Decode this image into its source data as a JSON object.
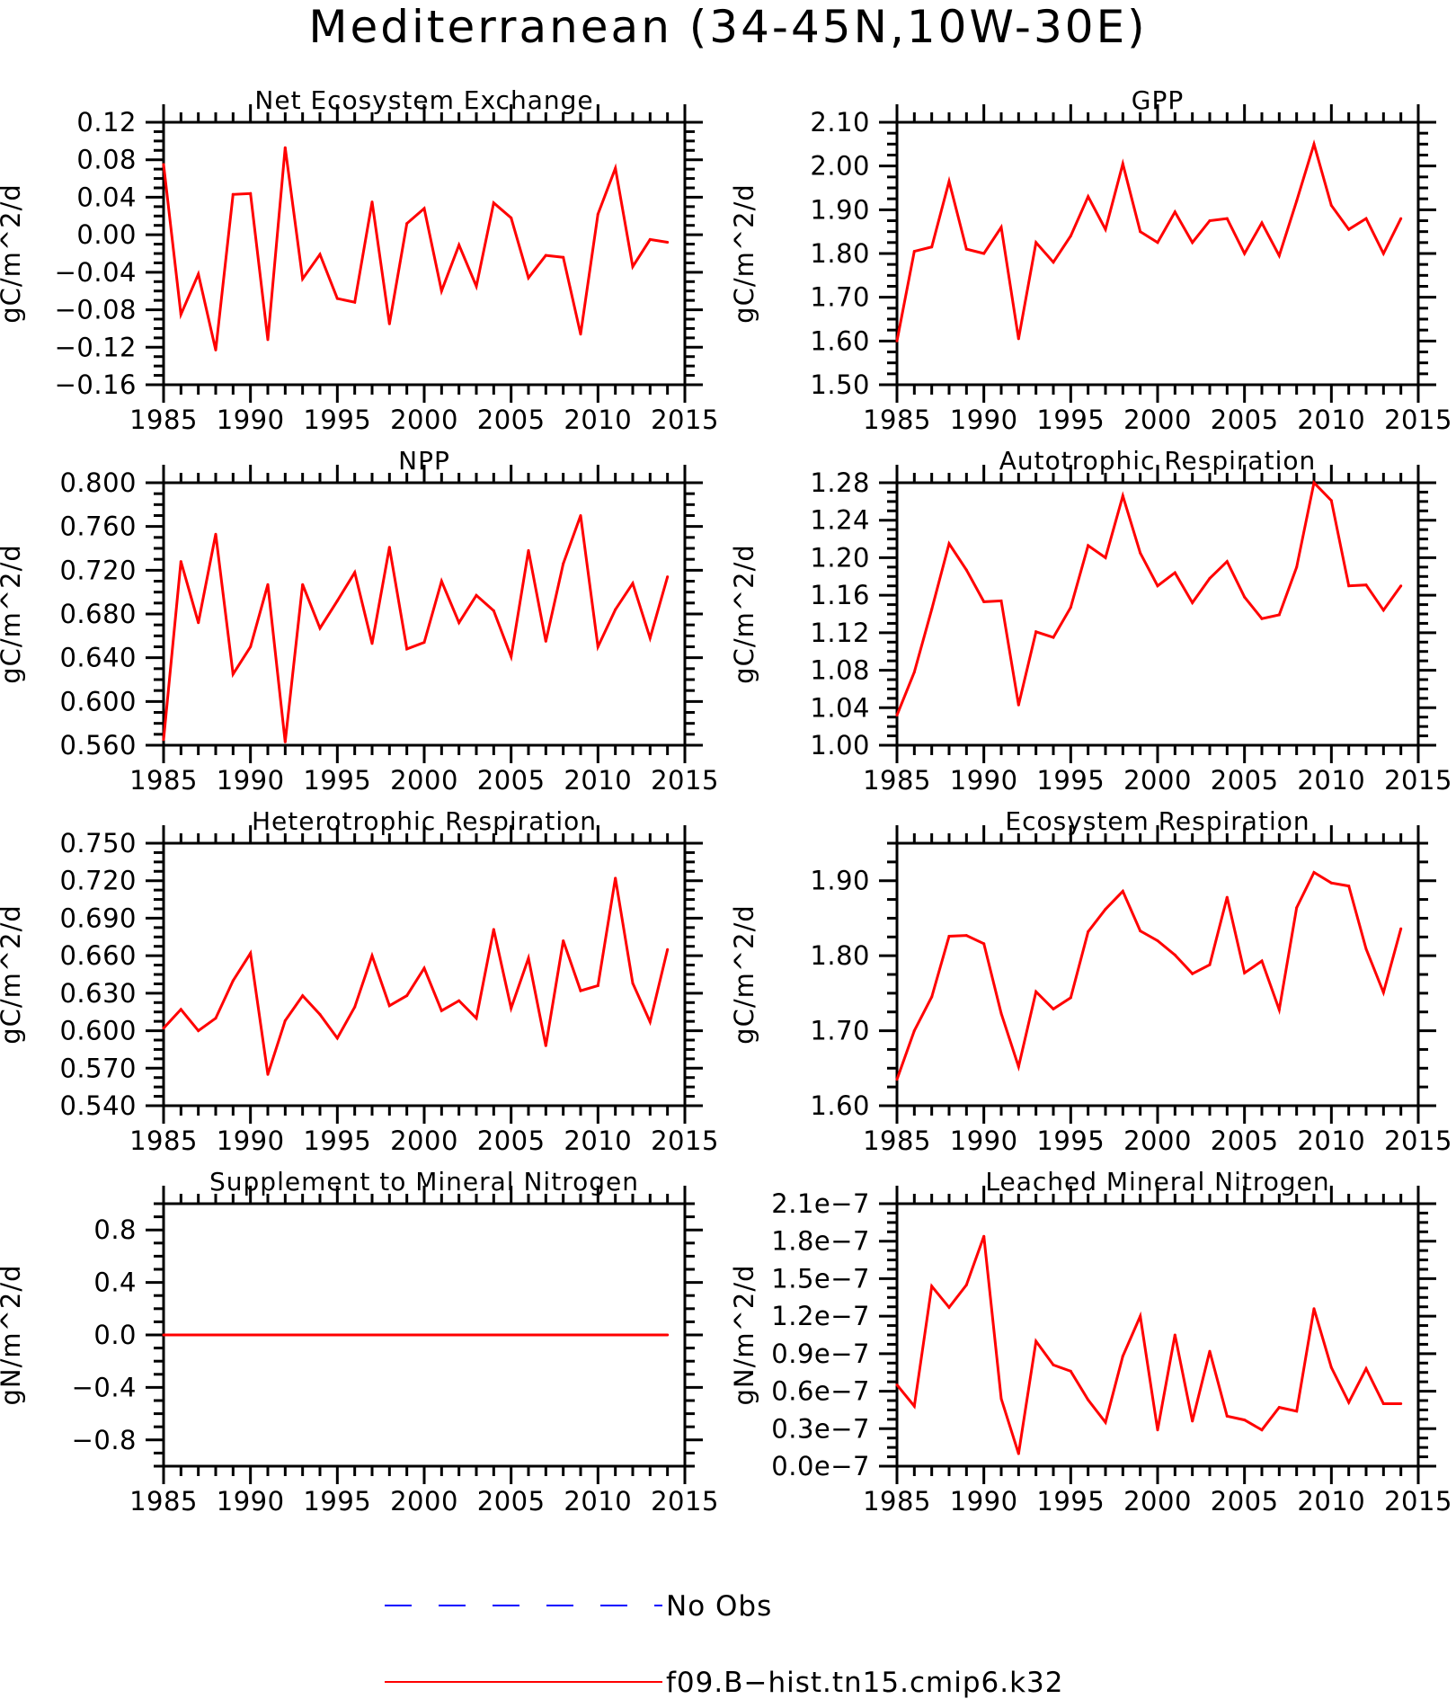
{
  "figure": {
    "title": "Mediterranean (34-45N,10W-30E)"
  },
  "colors": {
    "model": "#ff0000",
    "obs": "#0000ff",
    "axes": "#000000"
  },
  "legend": {
    "entries": [
      {
        "label": "No Obs",
        "color": "#0000ff",
        "style": "dashed"
      },
      {
        "label": "f09.B-hist.tn15.cmip6.k32",
        "color": "#ff0000",
        "style": "solid"
      }
    ]
  },
  "chart_data": [
    {
      "type": "line",
      "title": "Net Ecosystem Exchange",
      "ylabel": "gC/m^2/d",
      "xlabel": "",
      "xlim": [
        1985,
        2015
      ],
      "ylim": [
        -0.16,
        0.12
      ],
      "xticks": [
        1985,
        1990,
        1995,
        2000,
        2005,
        2010,
        2015
      ],
      "xtick_labels": [
        "1985",
        "1990",
        "1995",
        "2000",
        "2005",
        "2010",
        "2015"
      ],
      "yticks": [
        -0.16,
        -0.12,
        -0.08,
        -0.04,
        0.0,
        0.04,
        0.08,
        0.12
      ],
      "ytick_labels": [
        "-0.16",
        "-0.12",
        "-0.08",
        "-0.04",
        "0.00",
        "0.04",
        "0.08",
        "0.12"
      ],
      "grid": false,
      "series": [
        {
          "x": [
            1985,
            1986,
            1987,
            1988,
            1989,
            1990,
            1991,
            1992,
            1993,
            1994,
            1995,
            1996,
            1997,
            1998,
            1999,
            2000,
            2001,
            2002,
            2003,
            2004,
            2005,
            2006,
            2007,
            2008,
            2009,
            2010,
            2011,
            2012,
            2013,
            2014
          ],
          "values": [
            0.075,
            -0.085,
            -0.042,
            -0.123,
            0.043,
            0.044,
            -0.112,
            0.093,
            -0.047,
            -0.021,
            -0.068,
            -0.072,
            0.035,
            -0.095,
            0.012,
            0.028,
            -0.06,
            -0.011,
            -0.055,
            0.034,
            0.018,
            -0.046,
            -0.022,
            -0.024,
            -0.106,
            0.022,
            0.071,
            -0.034,
            -0.005,
            -0.008
          ]
        }
      ]
    },
    {
      "type": "line",
      "title": "GPP",
      "ylabel": "gC/m^2/d",
      "xlabel": "",
      "xlim": [
        1985,
        2015
      ],
      "ylim": [
        1.5,
        2.1
      ],
      "xticks": [
        1985,
        1990,
        1995,
        2000,
        2005,
        2010,
        2015
      ],
      "xtick_labels": [
        "1985",
        "1990",
        "1995",
        "2000",
        "2005",
        "2010",
        "2015"
      ],
      "yticks": [
        1.5,
        1.6,
        1.7,
        1.8,
        1.9,
        2.0,
        2.1
      ],
      "ytick_labels": [
        "1.50",
        "1.60",
        "1.70",
        "1.80",
        "1.90",
        "2.00",
        "2.10"
      ],
      "grid": false,
      "series": [
        {
          "x": [
            1985,
            1986,
            1987,
            1988,
            1989,
            1990,
            1991,
            1992,
            1993,
            1994,
            1995,
            1996,
            1997,
            1998,
            1999,
            2000,
            2001,
            2002,
            2003,
            2004,
            2005,
            2006,
            2007,
            2008,
            2009,
            2010,
            2011,
            2012,
            2013,
            2014
          ],
          "values": [
            1.6,
            1.805,
            1.815,
            1.965,
            1.81,
            1.8,
            1.86,
            1.605,
            1.825,
            1.78,
            1.84,
            1.93,
            1.855,
            2.005,
            1.85,
            1.825,
            1.895,
            1.825,
            1.875,
            1.88,
            1.8,
            1.87,
            1.795,
            1.92,
            2.05,
            1.91,
            1.855,
            1.88,
            1.8,
            1.88
          ]
        }
      ]
    },
    {
      "type": "line",
      "title": "NPP",
      "ylabel": "gC/m^2/d",
      "xlabel": "",
      "xlim": [
        1985,
        2015
      ],
      "ylim": [
        0.56,
        0.8
      ],
      "xticks": [
        1985,
        1990,
        1995,
        2000,
        2005,
        2010,
        2015
      ],
      "xtick_labels": [
        "1985",
        "1990",
        "1995",
        "2000",
        "2005",
        "2010",
        "2015"
      ],
      "yticks": [
        0.56,
        0.6,
        0.64,
        0.68,
        0.72,
        0.76,
        0.8
      ],
      "ytick_labels": [
        "0.560",
        "0.600",
        "0.640",
        "0.680",
        "0.720",
        "0.760",
        "0.800"
      ],
      "grid": false,
      "series": [
        {
          "x": [
            1985,
            1986,
            1987,
            1988,
            1989,
            1990,
            1991,
            1992,
            1993,
            1994,
            1995,
            1996,
            1997,
            1998,
            1999,
            2000,
            2001,
            2002,
            2003,
            2004,
            2005,
            2006,
            2007,
            2008,
            2009,
            2010,
            2011,
            2012,
            2013,
            2014
          ],
          "values": [
            0.565,
            0.728,
            0.672,
            0.753,
            0.625,
            0.65,
            0.707,
            0.563,
            0.707,
            0.667,
            0.692,
            0.718,
            0.653,
            0.741,
            0.648,
            0.654,
            0.71,
            0.672,
            0.697,
            0.683,
            0.641,
            0.738,
            0.655,
            0.726,
            0.77,
            0.65,
            0.684,
            0.708,
            0.658,
            0.714
          ]
        }
      ]
    },
    {
      "type": "line",
      "title": "Autotrophic Respiration",
      "ylabel": "gC/m^2/d",
      "xlabel": "",
      "xlim": [
        1985,
        2015
      ],
      "ylim": [
        1.0,
        1.28
      ],
      "xticks": [
        1985,
        1990,
        1995,
        2000,
        2005,
        2010,
        2015
      ],
      "xtick_labels": [
        "1985",
        "1990",
        "1995",
        "2000",
        "2005",
        "2010",
        "2015"
      ],
      "yticks": [
        1.0,
        1.04,
        1.08,
        1.12,
        1.16,
        1.2,
        1.24,
        1.28
      ],
      "ytick_labels": [
        "1.00",
        "1.04",
        "1.08",
        "1.12",
        "1.16",
        "1.20",
        "1.24",
        "1.28"
      ],
      "grid": false,
      "series": [
        {
          "x": [
            1985,
            1986,
            1987,
            1988,
            1989,
            1990,
            1991,
            1992,
            1993,
            1994,
            1995,
            1996,
            1997,
            1998,
            1999,
            2000,
            2001,
            2002,
            2003,
            2004,
            2005,
            2006,
            2007,
            2008,
            2009,
            2010,
            2011,
            2012,
            2013,
            2014
          ],
          "values": [
            1.032,
            1.078,
            1.145,
            1.215,
            1.187,
            1.153,
            1.154,
            1.043,
            1.121,
            1.115,
            1.147,
            1.213,
            1.2,
            1.266,
            1.205,
            1.17,
            1.184,
            1.152,
            1.178,
            1.196,
            1.158,
            1.135,
            1.139,
            1.19,
            1.28,
            1.261,
            1.17,
            1.171,
            1.144,
            1.17
          ]
        }
      ]
    },
    {
      "type": "line",
      "title": "Heterotrophic Respiration",
      "ylabel": "gC/m^2/d",
      "xlabel": "",
      "xlim": [
        1985,
        2015
      ],
      "ylim": [
        0.54,
        0.75
      ],
      "xticks": [
        1985,
        1990,
        1995,
        2000,
        2005,
        2010,
        2015
      ],
      "xtick_labels": [
        "1985",
        "1990",
        "1995",
        "2000",
        "2005",
        "2010",
        "2015"
      ],
      "yticks": [
        0.54,
        0.57,
        0.6,
        0.63,
        0.66,
        0.69,
        0.72,
        0.75
      ],
      "ytick_labels": [
        "0.540",
        "0.570",
        "0.600",
        "0.630",
        "0.660",
        "0.690",
        "0.720",
        "0.750"
      ],
      "grid": false,
      "series": [
        {
          "x": [
            1985,
            1986,
            1987,
            1988,
            1989,
            1990,
            1991,
            1992,
            1993,
            1994,
            1995,
            1996,
            1997,
            1998,
            1999,
            2000,
            2001,
            2002,
            2003,
            2004,
            2005,
            2006,
            2007,
            2008,
            2009,
            2010,
            2011,
            2012,
            2013,
            2014
          ],
          "values": [
            0.602,
            0.617,
            0.6,
            0.61,
            0.64,
            0.662,
            0.565,
            0.608,
            0.628,
            0.613,
            0.594,
            0.619,
            0.66,
            0.62,
            0.628,
            0.65,
            0.616,
            0.624,
            0.61,
            0.681,
            0.618,
            0.658,
            0.588,
            0.672,
            0.632,
            0.636,
            0.722,
            0.638,
            0.607,
            0.665
          ]
        }
      ]
    },
    {
      "type": "line",
      "title": "Ecosystem Respiration",
      "ylabel": "gC/m^2/d",
      "xlabel": "",
      "xlim": [
        1985,
        2015
      ],
      "ylim": [
        1.6,
        1.95
      ],
      "xticks": [
        1985,
        1990,
        1995,
        2000,
        2005,
        2010,
        2015
      ],
      "xtick_labels": [
        "1985",
        "1990",
        "1995",
        "2000",
        "2005",
        "2010",
        "2015"
      ],
      "yticks": [
        1.6,
        1.7,
        1.8,
        1.9
      ],
      "ytick_labels": [
        "1.60",
        "1.70",
        "1.80",
        "1.90"
      ],
      "grid": false,
      "series": [
        {
          "x": [
            1985,
            1986,
            1987,
            1988,
            1989,
            1990,
            1991,
            1992,
            1993,
            1994,
            1995,
            1996,
            1997,
            1998,
            1999,
            2000,
            2001,
            2002,
            2003,
            2004,
            2005,
            2006,
            2007,
            2008,
            2009,
            2010,
            2011,
            2012,
            2013,
            2014
          ],
          "values": [
            1.635,
            1.7,
            1.745,
            1.826,
            1.827,
            1.816,
            1.723,
            1.652,
            1.752,
            1.729,
            1.744,
            1.832,
            1.862,
            1.886,
            1.833,
            1.82,
            1.801,
            1.776,
            1.788,
            1.878,
            1.777,
            1.793,
            1.728,
            1.864,
            1.911,
            1.897,
            1.893,
            1.809,
            1.751,
            1.836
          ]
        }
      ]
    },
    {
      "type": "line",
      "title": "Supplement to Mineral Nitrogen",
      "ylabel": "gN/m^2/d",
      "xlabel": "",
      "xlim": [
        1985,
        2015
      ],
      "ylim": [
        -1.0,
        1.0
      ],
      "xticks": [
        1985,
        1990,
        1995,
        2000,
        2005,
        2010,
        2015
      ],
      "xtick_labels": [
        "1985",
        "1990",
        "1995",
        "2000",
        "2005",
        "2010",
        "2015"
      ],
      "yticks": [
        -0.8,
        -0.4,
        0.0,
        0.4,
        0.8
      ],
      "ytick_labels": [
        "-0.8",
        "-0.4",
        "0.0",
        "0.4",
        "0.8"
      ],
      "grid": false,
      "series": [
        {
          "x": [
            1985,
            1986,
            1987,
            1988,
            1989,
            1990,
            1991,
            1992,
            1993,
            1994,
            1995,
            1996,
            1997,
            1998,
            1999,
            2000,
            2001,
            2002,
            2003,
            2004,
            2005,
            2006,
            2007,
            2008,
            2009,
            2010,
            2011,
            2012,
            2013,
            2014
          ],
          "values": [
            0,
            0,
            0,
            0,
            0,
            0,
            0,
            0,
            0,
            0,
            0,
            0,
            0,
            0,
            0,
            0,
            0,
            0,
            0,
            0,
            0,
            0,
            0,
            0,
            0,
            0,
            0,
            0,
            0,
            0
          ]
        }
      ]
    },
    {
      "type": "line",
      "title": "Leached Mineral Nitrogen",
      "ylabel": "gN/m^2/d",
      "xlabel": "",
      "xlim": [
        1985,
        2015
      ],
      "ylim": [
        0.0,
        2.1e-07
      ],
      "xticks": [
        1985,
        1990,
        1995,
        2000,
        2005,
        2010,
        2015
      ],
      "xtick_labels": [
        "1985",
        "1990",
        "1995",
        "2000",
        "2005",
        "2010",
        "2015"
      ],
      "yticks": [
        0.0,
        3e-08,
        6e-08,
        9e-08,
        1.2e-07,
        1.5e-07,
        1.8e-07,
        2.1e-07
      ],
      "ytick_labels": [
        "0.0e-7",
        "0.3e-7",
        "0.6e-7",
        "0.9e-7",
        "1.2e-7",
        "1.5e-7",
        "1.8e-7",
        "2.1e-7"
      ],
      "grid": false,
      "series": [
        {
          "x": [
            1985,
            1986,
            1987,
            1988,
            1989,
            1990,
            1991,
            1992,
            1993,
            1994,
            1995,
            1996,
            1997,
            1998,
            1999,
            2000,
            2001,
            2002,
            2003,
            2004,
            2005,
            2006,
            2007,
            2008,
            2009,
            2010,
            2011,
            2012,
            2013,
            2014
          ],
          "values": [
            6.5e-08,
            4.8e-08,
            1.44e-07,
            1.27e-07,
            1.45e-07,
            1.84e-07,
            5.4e-08,
            1e-08,
            1e-07,
            8.1e-08,
            7.6e-08,
            5.3e-08,
            3.5e-08,
            8.8e-08,
            1.2e-07,
            2.9e-08,
            1.05e-07,
            3.6e-08,
            9.2e-08,
            4e-08,
            3.7e-08,
            2.9e-08,
            4.7e-08,
            4.4e-08,
            1.26e-07,
            7.9e-08,
            5.1e-08,
            7.8e-08,
            5e-08,
            5e-08
          ]
        }
      ]
    }
  ]
}
